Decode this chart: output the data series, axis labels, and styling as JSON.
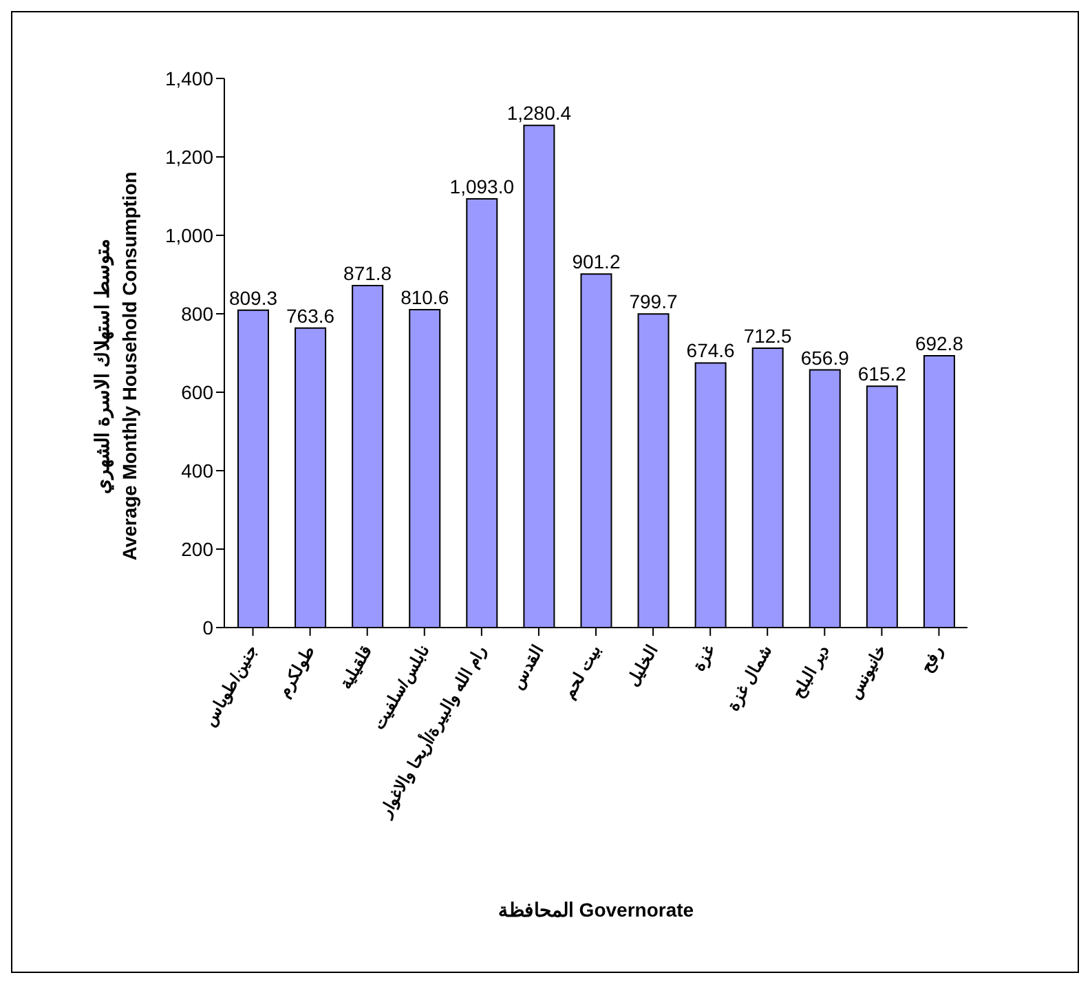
{
  "chart_data": {
    "type": "bar",
    "ylabel": "متوسط استهلاك الاسرة الشهري\nAverage Monthly Household Consumption",
    "xlabel": "المحافظة Governorate",
    "categories": [
      "جنين/طوباس",
      "طولكرم",
      "قلقيلية",
      "نابلس/سلفيت",
      "رام الله والبيرة/أريحا والاغوار",
      "القدس",
      "بيت لحم",
      "الخليل",
      "غزة",
      "شمال غزة",
      "دير البلح",
      "خانيونس",
      "رفح"
    ],
    "values": [
      809.3,
      763.6,
      871.8,
      810.6,
      1093.0,
      1280.4,
      901.2,
      799.7,
      674.6,
      712.5,
      656.9,
      615.2,
      692.8
    ],
    "value_labels": [
      "809.3",
      "763.6",
      "871.8",
      "810.6",
      "1,093.0",
      "1,280.4",
      "901.2",
      "799.7",
      "674.6",
      "712.5",
      "656.9",
      "615.2",
      "692.8"
    ],
    "color": "#9999ff",
    "ylim": [
      0,
      1400
    ],
    "yticks": [
      0,
      200,
      400,
      600,
      800,
      {
        "value": 1000,
        "label": "1,000"
      },
      {
        "value": 1200,
        "label": "1,200"
      },
      {
        "value": 1400,
        "label": "1,400"
      }
    ],
    "grid": false,
    "legend": false
  }
}
